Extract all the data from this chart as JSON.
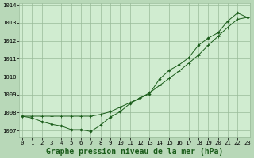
{
  "title": "Graphe pression niveau de la mer (hPa)",
  "background_color": "#b8d8b8",
  "plot_bg_color": "#d0ecd0",
  "grid_color": "#99bb99",
  "line_color": "#1a5c1a",
  "xlim": [
    -0.3,
    23.3
  ],
  "ylim": [
    1006.6,
    1014.1
  ],
  "yticks": [
    1007,
    1008,
    1009,
    1010,
    1011,
    1012,
    1013,
    1014
  ],
  "xticks": [
    0,
    1,
    2,
    3,
    4,
    5,
    6,
    7,
    8,
    9,
    10,
    11,
    12,
    13,
    14,
    15,
    16,
    17,
    18,
    19,
    20,
    21,
    22,
    23
  ],
  "series1_x": [
    0,
    1,
    2,
    3,
    4,
    5,
    6,
    7,
    8,
    9,
    10,
    11,
    12,
    13,
    14,
    15,
    16,
    17,
    18,
    19,
    20,
    21,
    22,
    23
  ],
  "series1_y": [
    1007.8,
    1007.7,
    1007.5,
    1007.35,
    1007.25,
    1007.05,
    1007.05,
    1006.95,
    1007.3,
    1007.75,
    1008.05,
    1008.5,
    1008.8,
    1009.05,
    1009.85,
    1010.35,
    1010.65,
    1011.05,
    1011.75,
    1012.15,
    1012.45,
    1013.1,
    1013.55,
    1013.3
  ],
  "series2_x": [
    0,
    1,
    2,
    3,
    4,
    5,
    6,
    7,
    8,
    9,
    10,
    11,
    12,
    13,
    14,
    15,
    16,
    17,
    18,
    19,
    20,
    21,
    22,
    23
  ],
  "series2_y": [
    1007.8,
    1007.8,
    1007.8,
    1007.8,
    1007.8,
    1007.8,
    1007.8,
    1007.8,
    1007.9,
    1008.05,
    1008.3,
    1008.55,
    1008.8,
    1009.1,
    1009.5,
    1009.9,
    1010.3,
    1010.75,
    1011.2,
    1011.75,
    1012.25,
    1012.75,
    1013.2,
    1013.3
  ],
  "title_fontsize": 7.0,
  "tick_fontsize": 5.2
}
